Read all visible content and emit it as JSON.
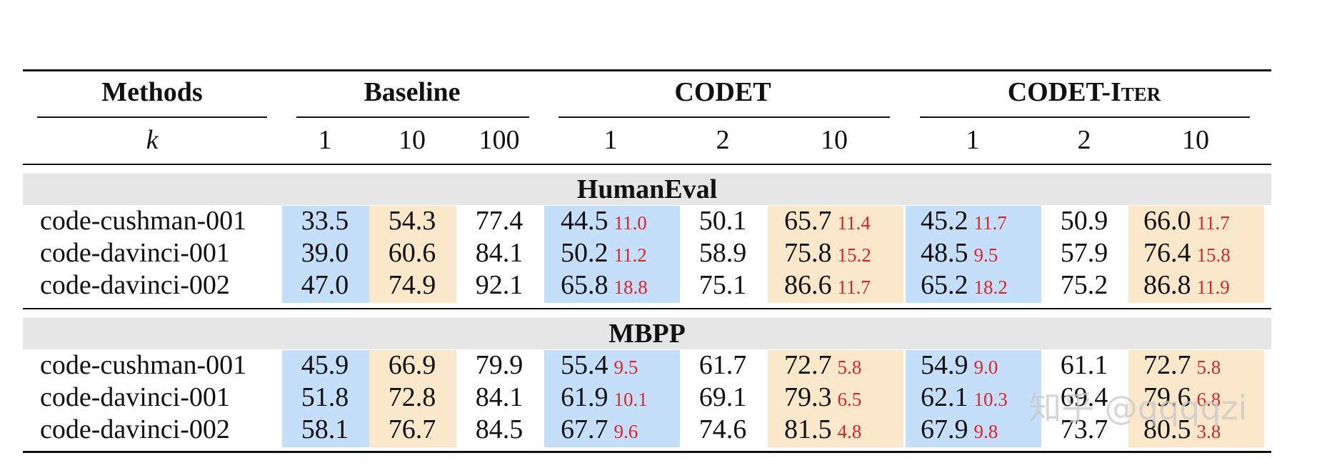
{
  "table": {
    "headers": {
      "methods": "Methods",
      "baseline": "Baseline",
      "codet": "CODET",
      "codet_iter": "CODET-Iter",
      "k_label": "k",
      "k_values": [
        "1",
        "10",
        "100",
        "1",
        "2",
        "10",
        "1",
        "2",
        "10"
      ]
    },
    "sections": [
      {
        "title": "HumanEval",
        "rows": [
          {
            "method": "code-cushman-001",
            "b1": "33.5",
            "b10": "54.3",
            "b100": "77.4",
            "c1": "44.5",
            "c1g": "11.0",
            "c2": "50.1",
            "c10": "65.7",
            "c10g": "11.4",
            "i1": "45.2",
            "i1g": "11.7",
            "i2": "50.9",
            "i10": "66.0",
            "i10g": "11.7"
          },
          {
            "method": "code-davinci-001",
            "b1": "39.0",
            "b10": "60.6",
            "b100": "84.1",
            "c1": "50.2",
            "c1g": "11.2",
            "c2": "58.9",
            "c10": "75.8",
            "c10g": "15.2",
            "i1": "48.5",
            "i1g": "9.5",
            "i2": "57.9",
            "i10": "76.4",
            "i10g": "15.8"
          },
          {
            "method": "code-davinci-002",
            "b1": "47.0",
            "b10": "74.9",
            "b100": "92.1",
            "c1": "65.8",
            "c1g": "18.8",
            "c2": "75.1",
            "c10": "86.6",
            "c10g": "11.7",
            "i1": "65.2",
            "i1g": "18.2",
            "i2": "75.2",
            "i10": "86.8",
            "i10g": "11.9"
          }
        ]
      },
      {
        "title": "MBPP",
        "rows": [
          {
            "method": "code-cushman-001",
            "b1": "45.9",
            "b10": "66.9",
            "b100": "79.9",
            "c1": "55.4",
            "c1g": "9.5",
            "c2": "61.7",
            "c10": "72.7",
            "c10g": "5.8",
            "i1": "54.9",
            "i1g": "9.0",
            "i2": "61.1",
            "i10": "72.7",
            "i10g": "5.8"
          },
          {
            "method": "code-davinci-001",
            "b1": "51.8",
            "b10": "72.8",
            "b100": "84.1",
            "c1": "61.9",
            "c1g": "10.1",
            "c2": "69.1",
            "c10": "79.3",
            "c10g": "6.5",
            "i1": "62.1",
            "i1g": "10.3",
            "i2": "69.4",
            "i10": "79.6",
            "i10g": "6.8"
          },
          {
            "method": "code-davinci-002",
            "b1": "58.1",
            "b10": "76.7",
            "b100": "84.5",
            "c1": "67.7",
            "c1g": "9.6",
            "c2": "74.6",
            "c10": "81.5",
            "c10g": "4.8",
            "i1": "67.9",
            "i1g": "9.8",
            "i2": "73.7",
            "i10": "80.5",
            "i10g": "3.8"
          }
        ]
      }
    ]
  },
  "watermark": "知乎 @qqqqzi",
  "colors": {
    "blue_shade": "#c5defa",
    "orange_shade": "#fbe8cb",
    "gain": "#d6262b",
    "band": "#e6e6e6"
  }
}
